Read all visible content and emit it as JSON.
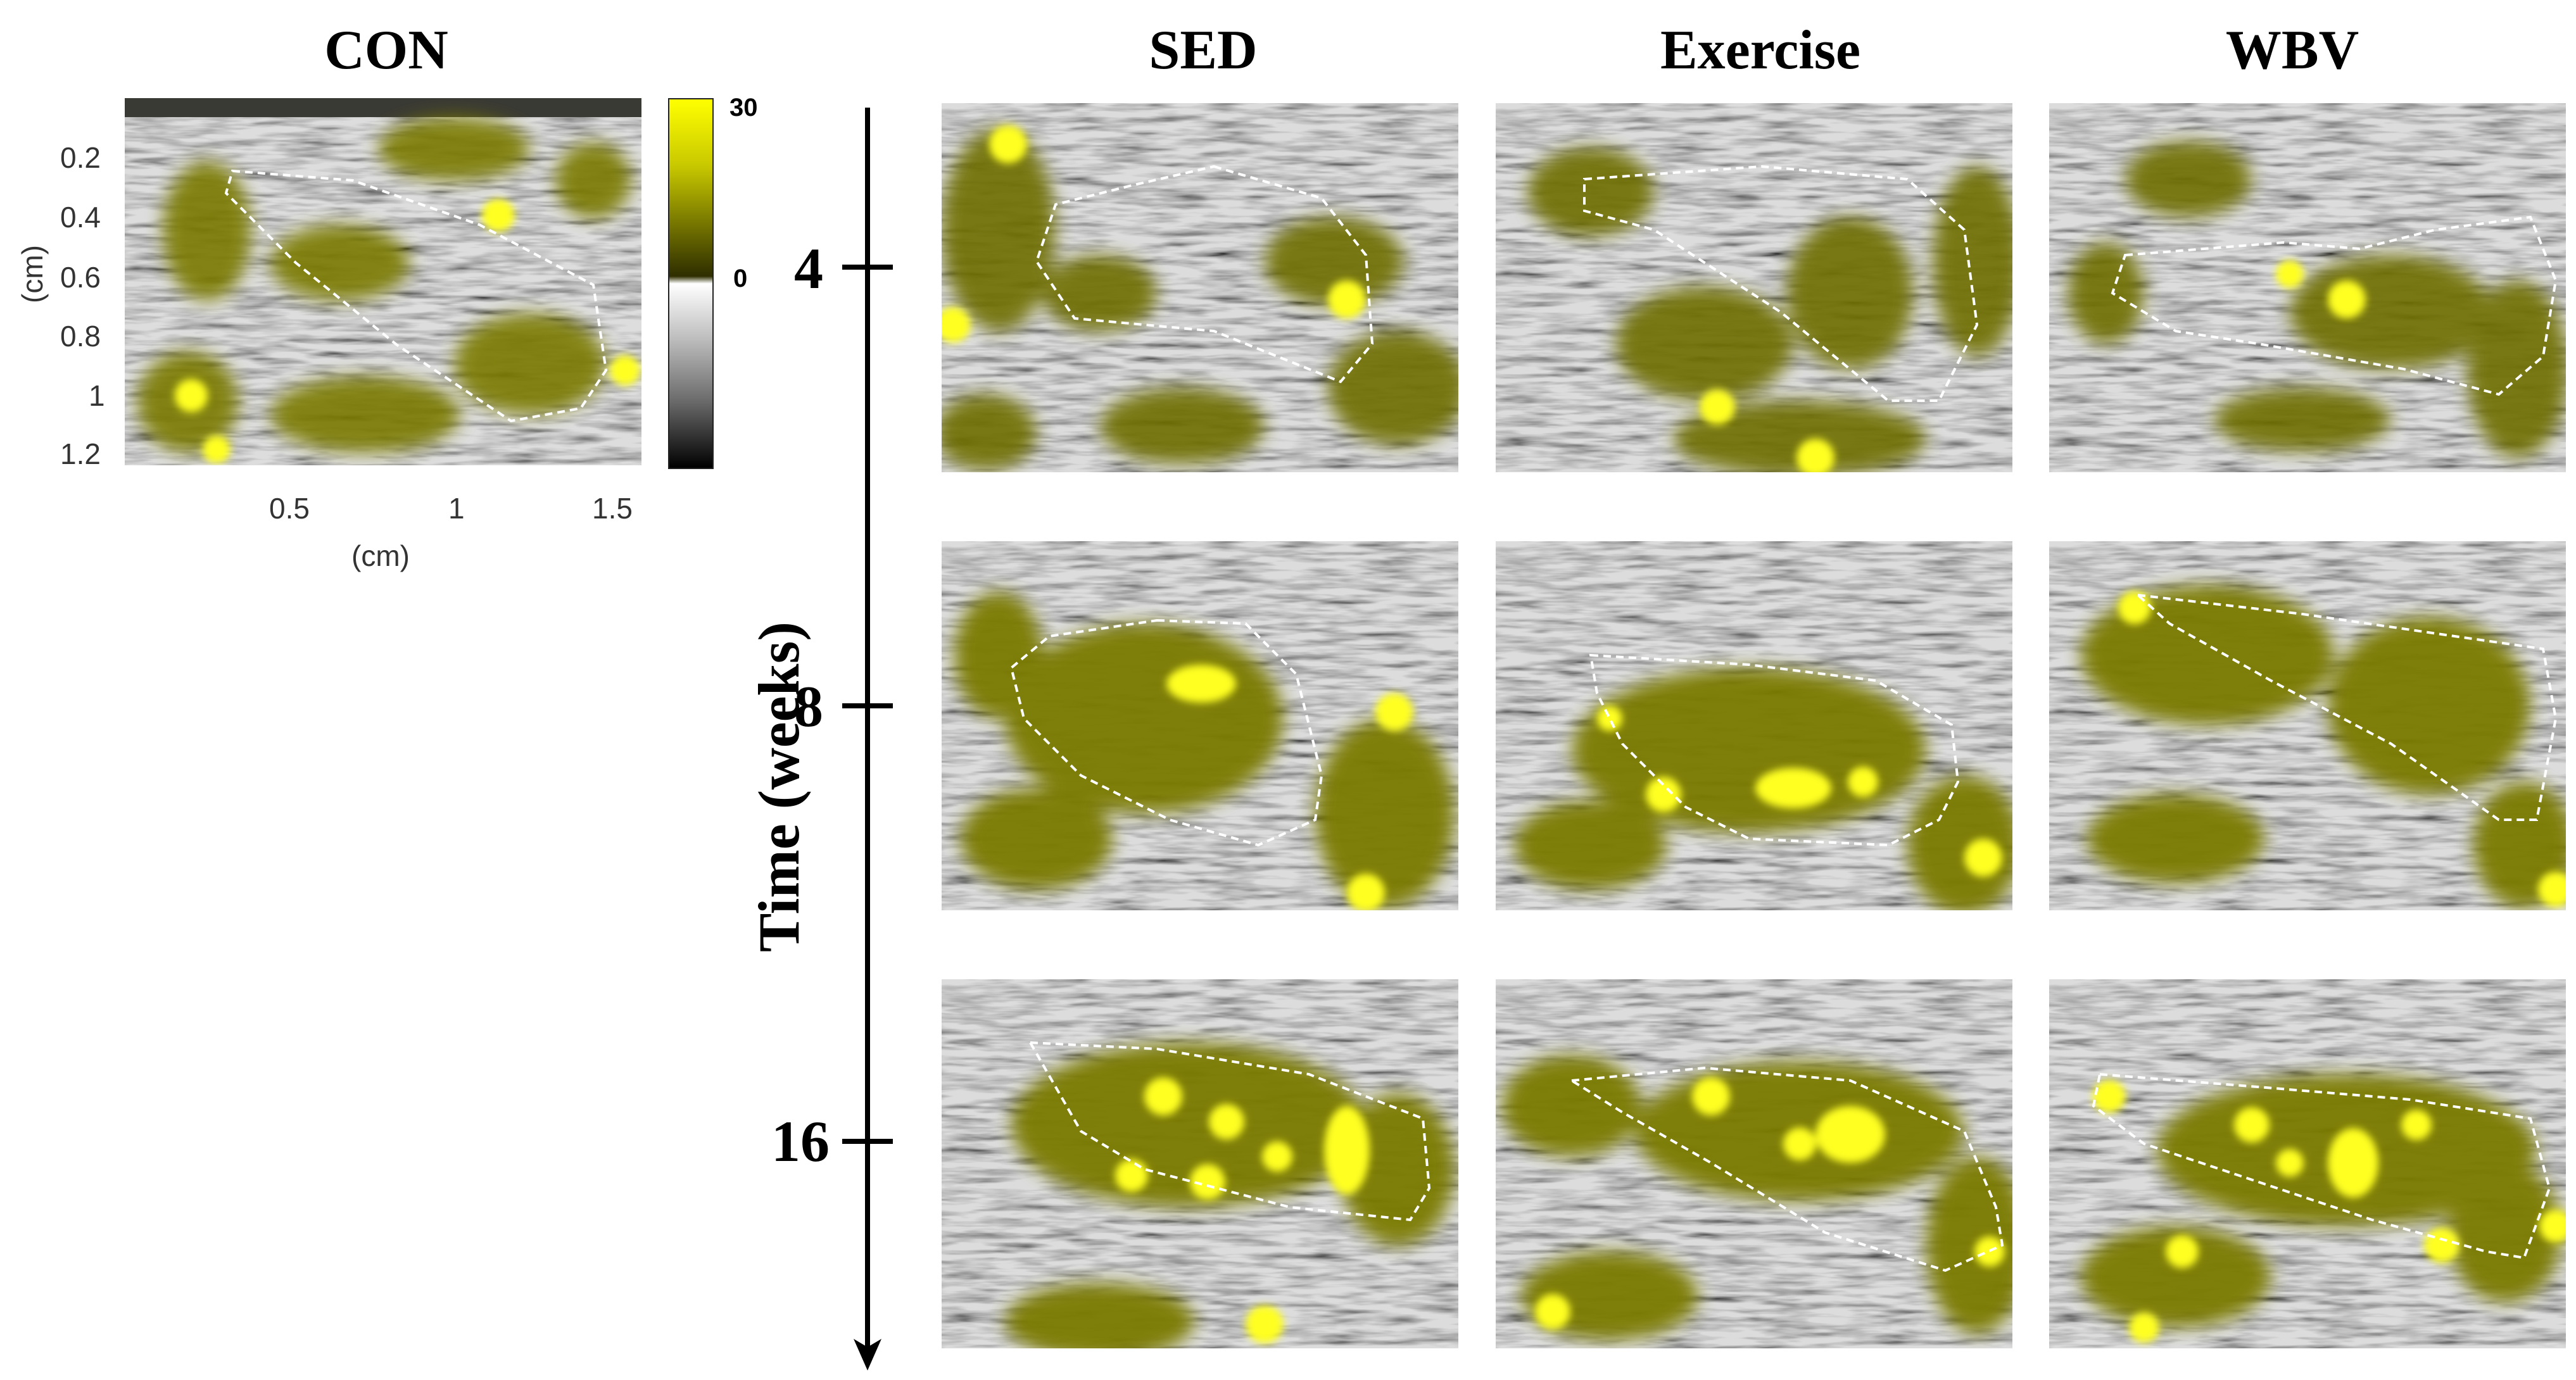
{
  "columns": {
    "con": "CON",
    "sed": "SED",
    "exercise": "Exercise",
    "wbv": "WBV"
  },
  "con_axes": {
    "y_unit": "(cm)",
    "x_unit": "(cm)",
    "y_ticks": [
      "0.2",
      "0.4",
      "0.6",
      "0.8",
      "1",
      "1.2"
    ],
    "x_ticks": [
      "0.5",
      "1",
      "1.5"
    ]
  },
  "colorbar": {
    "max_label": "30",
    "zero_label": "0",
    "high_color": "#ffff00",
    "mid_color": "#3a3a00"
  },
  "time_axis": {
    "label": "Time (weeks)",
    "weeks": [
      "4",
      "8",
      "16"
    ]
  },
  "colors": {
    "background": "#ffffff",
    "overlay_yellow": "#e6e600",
    "outline": "#ffffff"
  }
}
